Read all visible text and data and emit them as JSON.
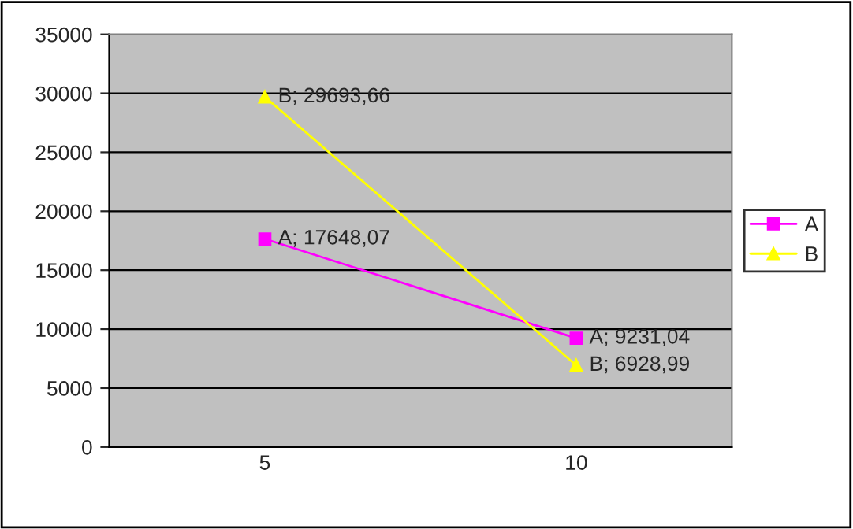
{
  "chart_data": {
    "type": "line",
    "categories": [
      "5",
      "10"
    ],
    "series": [
      {
        "name": "A",
        "color": "#ff00ff",
        "marker": "square",
        "values": [
          17648.07,
          9231.04
        ],
        "value_labels": [
          "A; 17648,07",
          "A; 9231,04"
        ]
      },
      {
        "name": "B",
        "color": "#ffff00",
        "marker": "triangle",
        "values": [
          29693.66,
          6928.99
        ],
        "value_labels": [
          "B; 29693,66",
          "B; 6928,99"
        ]
      }
    ],
    "ylim": [
      0,
      35000
    ],
    "yticks": [
      0,
      5000,
      10000,
      15000,
      20000,
      25000,
      30000,
      35000
    ],
    "grid": "y",
    "legend": "right",
    "line_style": "solid"
  }
}
